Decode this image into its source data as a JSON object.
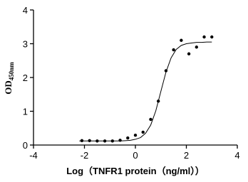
{
  "chart_data": {
    "type": "scatter",
    "xlabel": "Log（TNFR1 protein（ng/ml））",
    "ylabel": "OD",
    "ylabel_sub": "450nm",
    "xlim": [
      -4,
      4
    ],
    "xticks": [
      -4,
      -2,
      0,
      2,
      4
    ],
    "ylim": [
      0,
      4
    ],
    "yticks": [
      0,
      1,
      2,
      3,
      4
    ],
    "series": [
      {
        "color": "#000000",
        "x": [
          -2.1,
          -1.8,
          -1.5,
          -1.2,
          -0.9,
          -0.6,
          -0.3,
          0,
          0.3,
          0.6,
          0.9,
          1.2,
          1.5,
          1.8,
          2.1,
          2.4,
          2.7,
          3.0
        ],
        "values": [
          0.13,
          0.13,
          0.12,
          0.12,
          0.12,
          0.14,
          0.21,
          0.29,
          0.38,
          0.76,
          1.3,
          2.2,
          2.82,
          3.1,
          2.7,
          2.9,
          3.2,
          3.2
        ]
      },
      {
        "color": "#000000",
        "line": true,
        "x": [
          -2.2,
          -2.0,
          -1.8,
          -1.6,
          -1.4,
          -1.2,
          -1.0,
          -0.8,
          -0.6,
          -0.4,
          -0.2,
          0,
          0.2,
          0.4,
          0.6,
          0.8,
          1.0,
          1.2,
          1.4,
          1.6,
          1.8,
          2.0,
          2.2,
          2.4,
          2.6,
          2.8,
          3.0
        ],
        "values": [
          0.12,
          0.12,
          0.12,
          0.12,
          0.12,
          0.12,
          0.12,
          0.12,
          0.12,
          0.13,
          0.14,
          0.17,
          0.22,
          0.35,
          0.59,
          1.01,
          1.59,
          2.16,
          2.58,
          2.83,
          2.95,
          3.0,
          3.02,
          3.04,
          3.04,
          3.05,
          3.05
        ]
      }
    ]
  }
}
